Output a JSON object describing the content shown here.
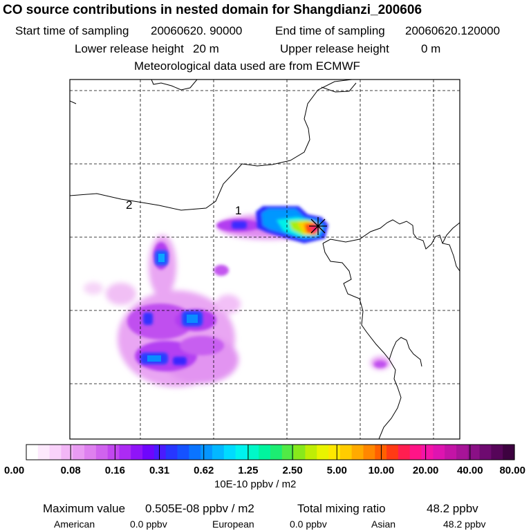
{
  "header": {
    "title": "CO  source contributions in nested domain for Shangdianzi_200606",
    "start_label": "Start time of sampling",
    "start_value": "20060620. 90000",
    "end_label": "End time of sampling",
    "end_value": "20060620.120000",
    "lower_label": "Lower release height",
    "lower_value": "20 m",
    "upper_label": "Upper release height",
    "upper_value": "0 m",
    "met_line": "Meteorological data used are from ECMWF"
  },
  "map": {
    "contour_labels": [
      "1",
      "2"
    ],
    "receptor_marker": "receptor-cross"
  },
  "chart_data": {
    "type": "heatmap",
    "title": "CO  source contributions in nested domain for Shangdianzi_200606",
    "colorbar_ticks": [
      "0.00",
      "0.08",
      "0.16",
      "0.31",
      "0.62",
      "1.25",
      "2.50",
      "5.00",
      "10.00",
      "20.00",
      "40.00",
      "80.00"
    ],
    "colorbar_unit": "10E-10 ppbv / m2",
    "colorbar_colors": [
      "#ffffff",
      "#fde9fd",
      "#f9d2fa",
      "#f2b6f6",
      "#e99bf2",
      "#de80ef",
      "#d063ee",
      "#c247ef",
      "#ac2bf3",
      "#8f14f8",
      "#6e06fc",
      "#4a1bff",
      "#2736ff",
      "#1552ff",
      "#0a74ff",
      "#0596ff",
      "#03b8ff",
      "#00dbff",
      "#00f3ef",
      "#00f8c8",
      "#00f49e",
      "#1ced72",
      "#51ea46",
      "#88e91b",
      "#bfee05",
      "#e9f400",
      "#fee800",
      "#ffcc00",
      "#ffaa00",
      "#ff8700",
      "#ff6000",
      "#ff3a14",
      "#ff1e50",
      "#ff1487",
      "#f414a7",
      "#de14b0",
      "#c314a6",
      "#a71498",
      "#8a1086",
      "#6e0a70",
      "#560559",
      "#3d0240"
    ],
    "stats": {
      "max_label": "Maximum value",
      "max_value": "0.505E-08 ppbv / m2",
      "total_label": "Total mixing ratio",
      "total_value": "48.2 ppbv",
      "american_label": "American",
      "american_value": "0.0 ppbv",
      "european_label": "European",
      "european_value": "0.0 ppbv",
      "asian_label": "Asian",
      "asian_value": "48.2 ppbv"
    }
  }
}
